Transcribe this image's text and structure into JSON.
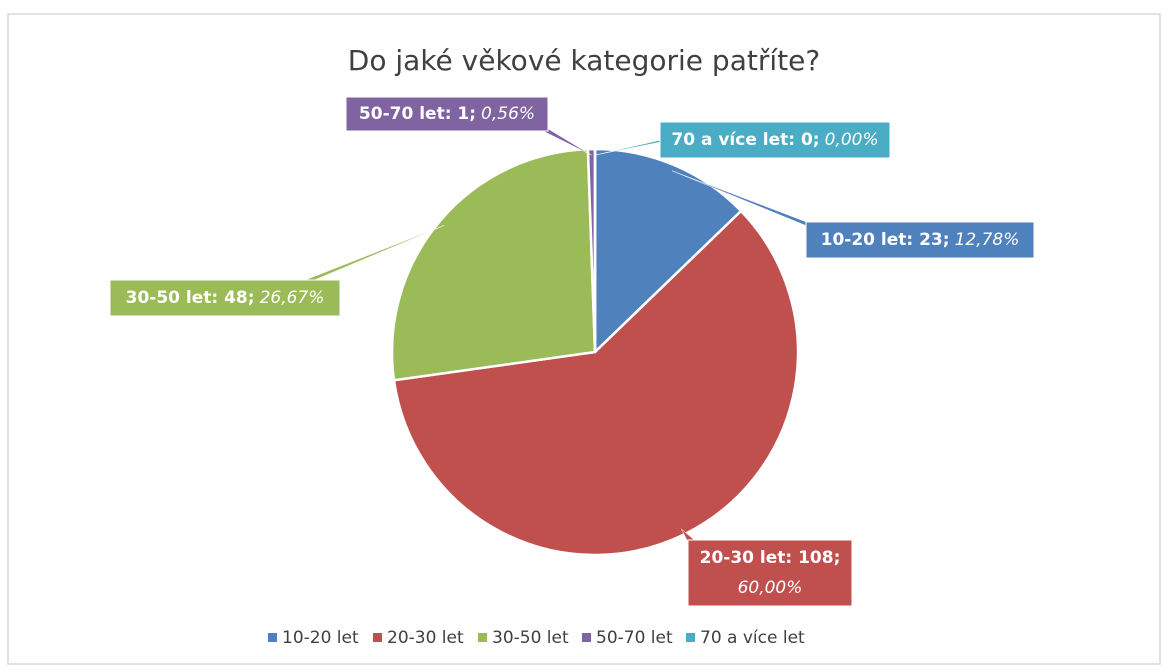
{
  "chart_data": {
    "type": "pie",
    "title": "Do jaké věkové kategorie patříte?",
    "categories": [
      "10-20 let",
      "20-30 let",
      "30-50 let",
      "50-70 let",
      "70 a více let"
    ],
    "values": [
      23,
      108,
      48,
      1,
      0
    ],
    "value_labels": [
      "10-20 let: 23;",
      "20-30 let: 108;",
      "30-50 let: 48;",
      "50-70 let: 1;",
      "70 a více let: 0;"
    ],
    "percentages": [
      12.78,
      60.0,
      26.67,
      0.56,
      0.0
    ],
    "percentage_labels": [
      "12,78%",
      "60,00%",
      "26,67%",
      "0,56%",
      "0,00%"
    ],
    "colors": [
      "#4f81bd",
      "#c0504d",
      "#9bbb59",
      "#8064a2",
      "#4bacc6"
    ],
    "legend": "bottom"
  }
}
